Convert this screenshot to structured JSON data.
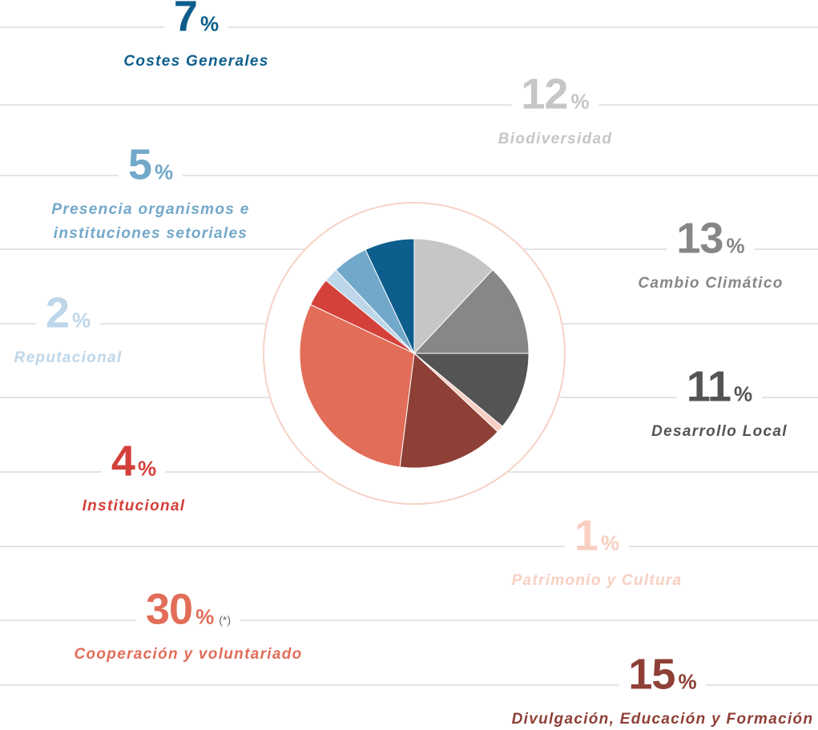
{
  "chart_data": {
    "type": "pie",
    "unit": "%",
    "annotation": "(*)",
    "categories": [
      "Biodiversidad",
      "Cambio Climático",
      "Desarrollo Local",
      "Patrimonio y Cultura",
      "Divulgación, Educación y Formación",
      "Cooperación y voluntariado",
      "Institucional",
      "Reputacional",
      "Presencia organismos e instituciones setoriales",
      "Costes Generales"
    ],
    "values": [
      12,
      13,
      11,
      1,
      15,
      30,
      4,
      2,
      5,
      7
    ],
    "colors": [
      "#c6c6c6",
      "#878787",
      "#545454",
      "#f8cfc1",
      "#8e3f36",
      "#e26d58",
      "#d4403a",
      "#bed6e9",
      "#72a8ca",
      "#0d5e8d"
    ]
  }
}
